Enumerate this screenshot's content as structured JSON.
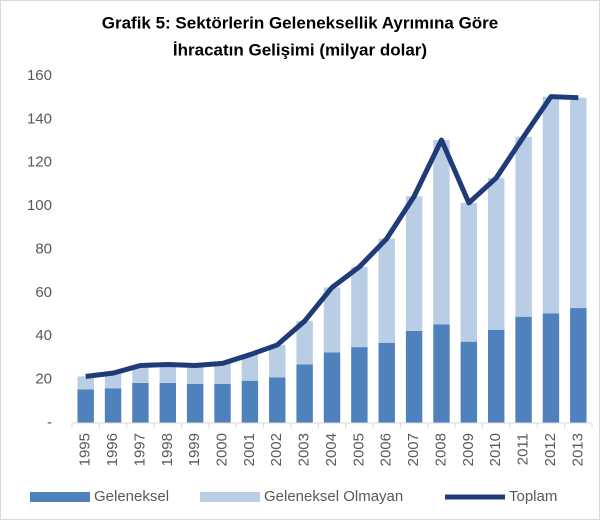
{
  "chart_data": {
    "type": "stacked_bar_line",
    "title": [
      "Grafik 5: Sektörlerin Geleneksellik Ayrımına Göre",
      "İhracatın Gelişimi (milyar dolar)"
    ],
    "categories": [
      "1995",
      "1996",
      "1997",
      "1998",
      "1999",
      "2000",
      "2001",
      "2002",
      "2003",
      "2004",
      "2005",
      "2006",
      "2007",
      "2008",
      "2009",
      "2010",
      "2011",
      "2012",
      "2013"
    ],
    "series": [
      {
        "name": "Geleneksel",
        "color": "#4f81bd",
        "kind": "bar",
        "values": [
          15.5,
          16,
          18.5,
          18.5,
          18,
          18,
          19.5,
          21,
          27,
          32.5,
          35,
          37,
          42.5,
          45.5,
          37.5,
          43,
          49,
          50.5,
          53
        ]
      },
      {
        "name": "Geleneksel Olmayan",
        "color": "#b9cde5",
        "kind": "bar",
        "values": [
          6,
          7,
          8,
          8.5,
          8.5,
          9.5,
          12,
          15,
          20,
          30,
          37,
          48,
          62,
          85,
          64,
          70,
          83,
          100,
          97
        ]
      },
      {
        "name": "Toplam",
        "color": "#1f3c78",
        "kind": "line",
        "values": [
          21.5,
          23,
          26.5,
          27,
          26.5,
          27.5,
          31.5,
          36,
          47,
          62.5,
          72,
          85,
          104.5,
          130.5,
          101.5,
          113,
          132,
          150.5,
          150
        ]
      }
    ],
    "ylim": [
      0,
      160
    ],
    "yticks": [
      {
        "value": 0,
        "label": "-"
      },
      20,
      40,
      60,
      80,
      100,
      120,
      140,
      160
    ],
    "grid": false,
    "legend": "bottom"
  }
}
